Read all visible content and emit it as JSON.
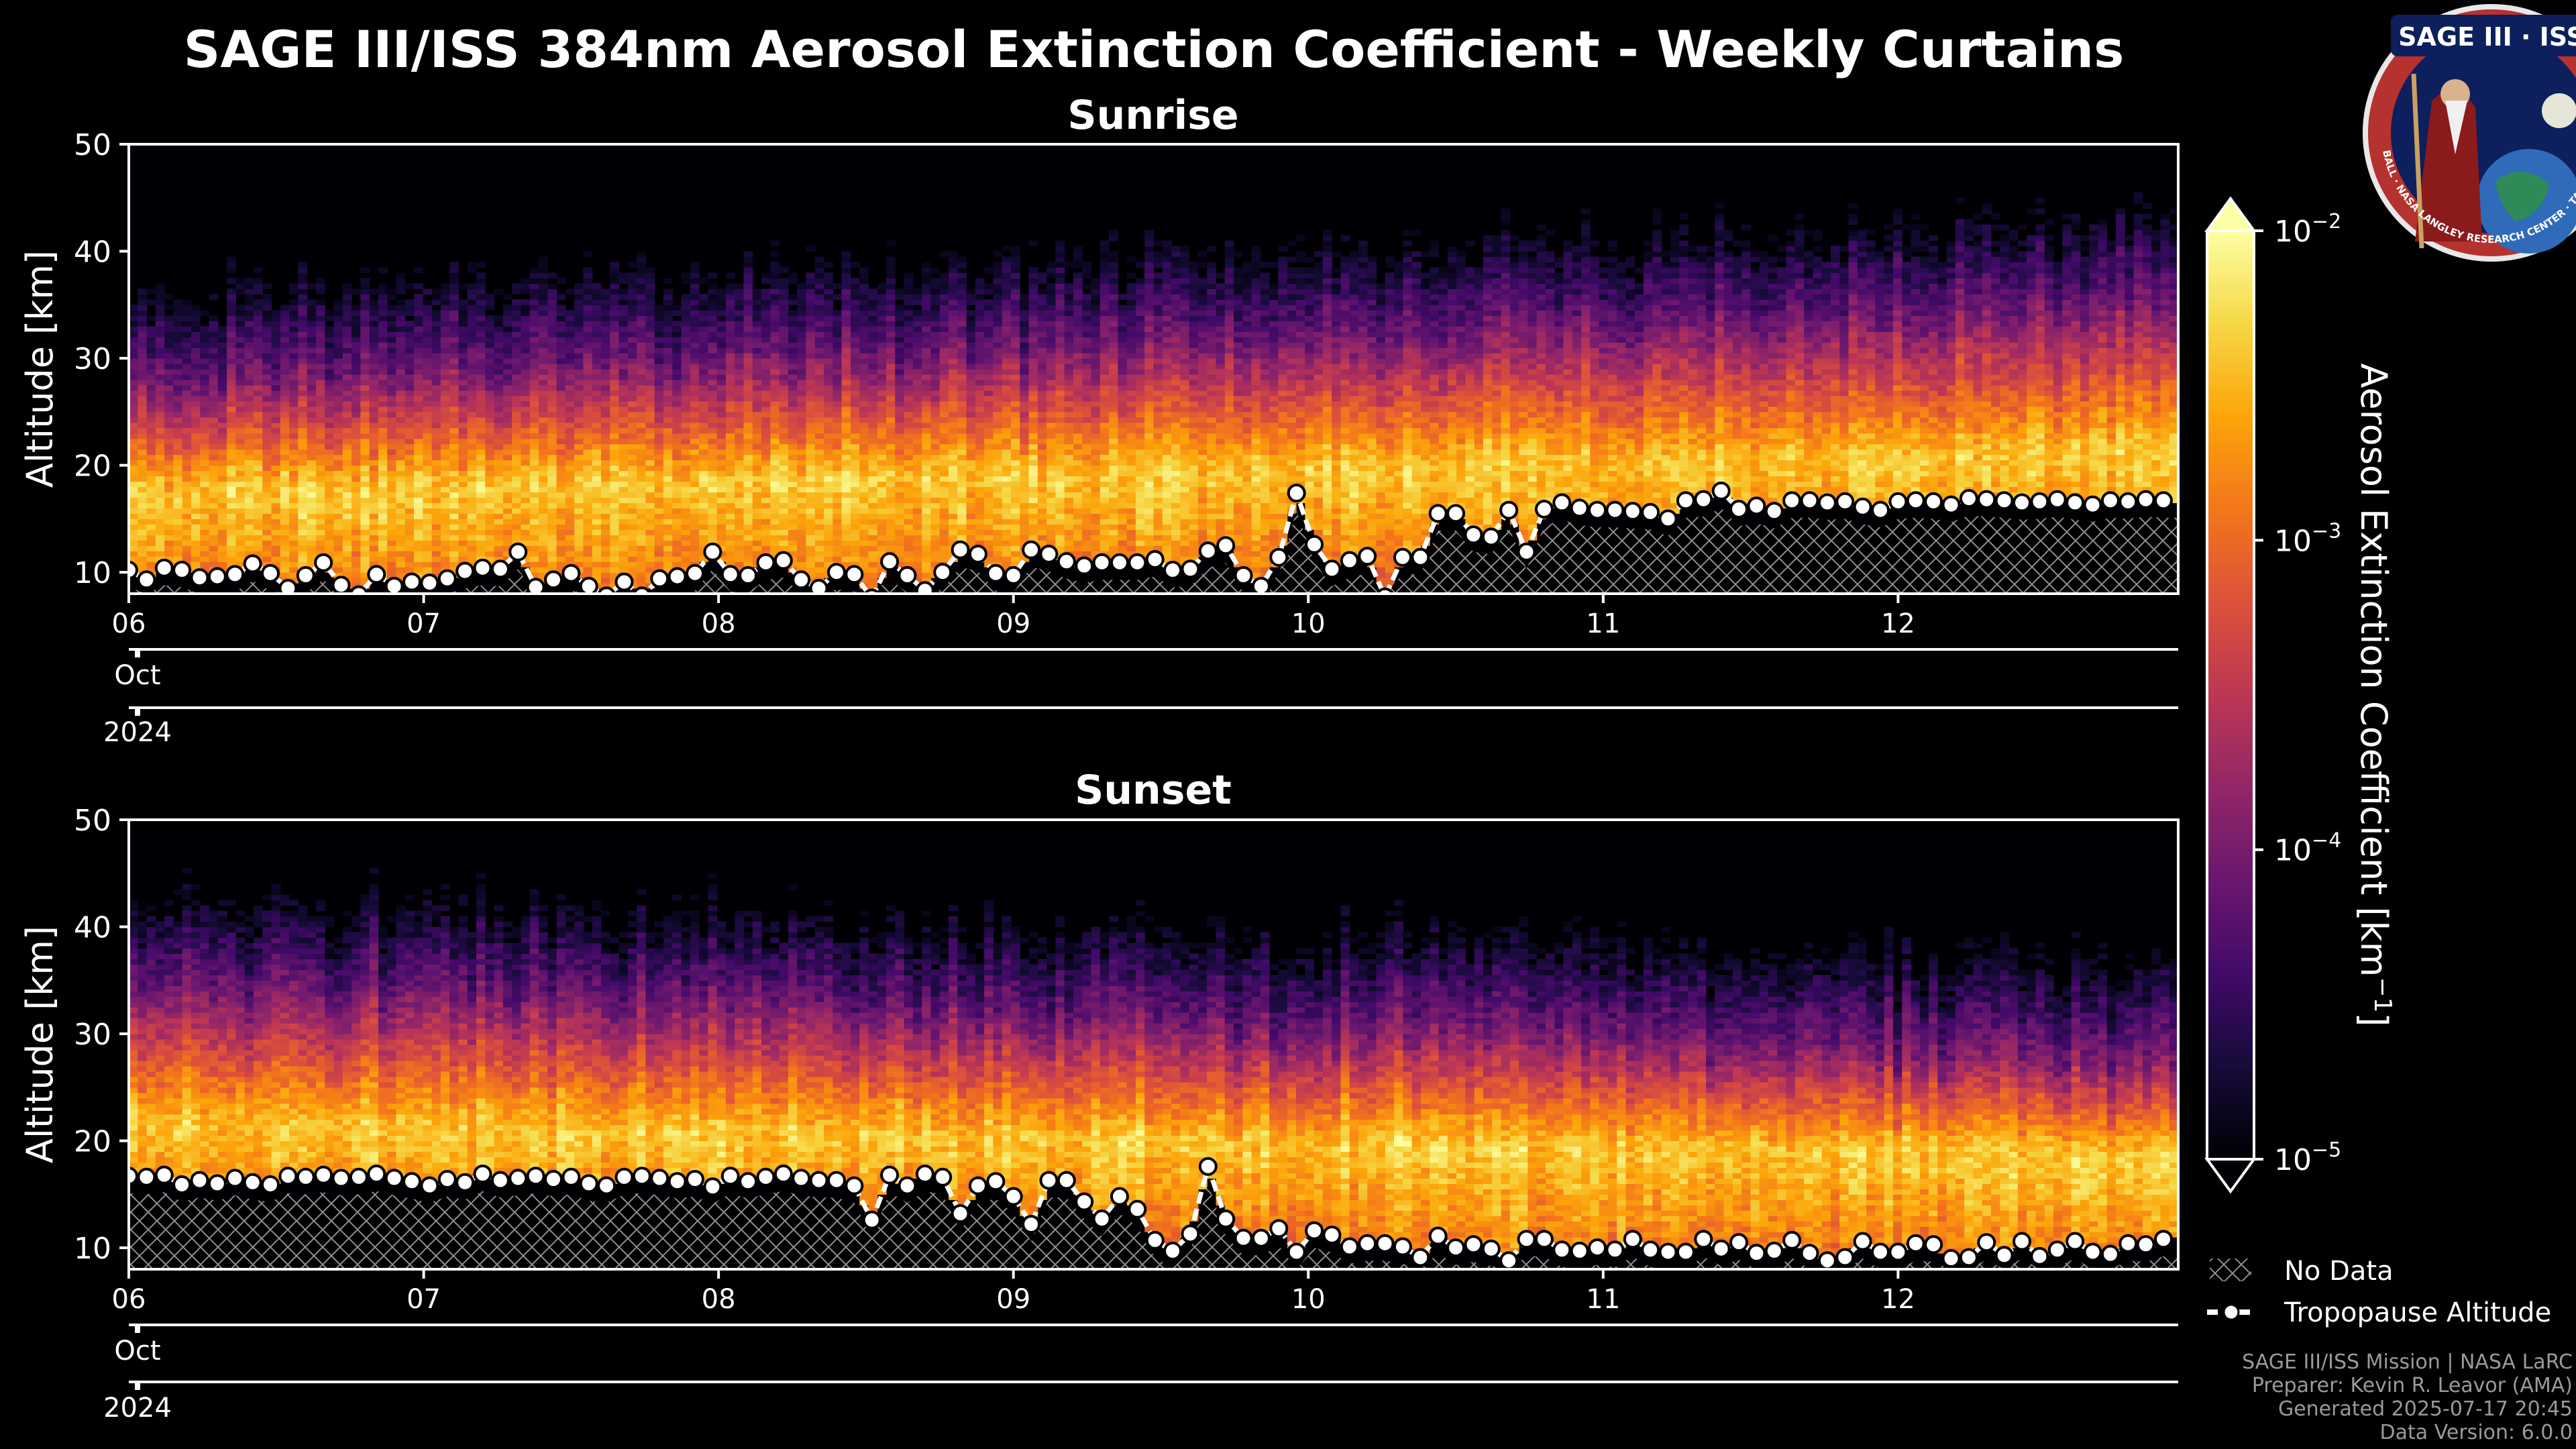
{
  "figure": {
    "title": "SAGE III/ISS 384nm Aerosol Extinction Coefficient - Weekly Curtains",
    "footer": [
      "SAGE III/ISS Mission | NASA LaRC",
      "Preparer: Kevin R. Leavor (AMA)",
      "Generated 2025-07-17 20:45",
      "Data Version: 6.0.0"
    ],
    "logo": {
      "top_text": "SAGE III · ISS",
      "ring_text": "BALL · NASA LANGLEY RESEARCH CENTER · TAS-I · ESA"
    },
    "colors": {
      "background": "#000000",
      "axes": "#ffffff",
      "hatch": "#9a9a9a",
      "tropopause": "#ffffff"
    }
  },
  "legend": {
    "no_data": "No Data",
    "tropopause": "Tropopause Altitude"
  },
  "colorbar": {
    "label": "Aerosol Extinction Coefficient [km",
    "label_exp": "−1",
    "label_close": "]",
    "scale": "log",
    "range": [
      1e-05,
      0.01
    ],
    "ticks": [
      {
        "base": "10",
        "exp": "−2",
        "value": 0.01
      },
      {
        "base": "10",
        "exp": "−3",
        "value": 0.001
      },
      {
        "base": "10",
        "exp": "−4",
        "value": 0.0001
      },
      {
        "base": "10",
        "exp": "−5",
        "value": 1e-05
      }
    ],
    "colormap": "inferno",
    "extend": "both"
  },
  "chart_data": [
    {
      "type": "heatmap",
      "title": "Sunrise",
      "ylabel": "Altitude [km]",
      "ylim": [
        8,
        50
      ],
      "yticks": [
        10,
        20,
        30,
        40,
        50
      ],
      "xlim_days": [
        6.0,
        12.95
      ],
      "xticks": [
        "06",
        "07",
        "08",
        "09",
        "10",
        "11",
        "12"
      ],
      "xtick_days": [
        6,
        7,
        8,
        9,
        10,
        11,
        12
      ],
      "month_label": "Oct",
      "year_label": "2024",
      "aerosol_layer": {
        "peak_alt_km_start": 17.5,
        "peak_alt_km_end": 21.0,
        "top_alt_km_start": 27,
        "top_alt_km_end": 34
      },
      "tropopause": {
        "days": [
          6.0,
          6.06,
          6.12,
          6.18,
          6.24,
          6.3,
          6.36,
          6.42,
          6.48,
          6.54,
          6.6,
          6.66,
          6.72,
          6.78,
          6.84,
          6.9,
          6.96,
          7.02,
          7.08,
          7.14,
          7.2,
          7.26,
          7.32,
          7.38,
          7.44,
          7.5,
          7.56,
          7.62,
          7.68,
          7.74,
          7.8,
          7.86,
          7.92,
          7.98,
          8.04,
          8.1,
          8.16,
          8.22,
          8.28,
          8.34,
          8.4,
          8.46,
          8.52,
          8.58,
          8.64,
          8.7,
          8.76,
          8.82,
          8.88,
          8.94,
          9.0,
          9.06,
          9.12,
          9.18,
          9.24,
          9.3,
          9.36,
          9.42,
          9.48,
          9.54,
          9.6,
          9.66,
          9.72,
          9.78,
          9.84,
          9.9,
          9.96,
          10.02,
          10.08,
          10.14,
          10.2,
          10.26,
          10.32,
          10.38,
          10.44,
          10.5,
          10.56,
          10.62,
          10.68,
          10.74,
          10.8,
          10.86,
          10.92,
          10.98,
          11.04,
          11.1,
          11.16,
          11.22,
          11.28,
          11.34,
          11.4,
          11.46,
          11.52,
          11.58,
          11.64,
          11.7,
          11.76,
          11.82,
          11.88,
          11.94,
          12.0,
          12.06,
          12.12,
          12.18,
          12.24,
          12.3,
          12.36,
          12.42,
          12.48,
          12.54,
          12.6,
          12.66,
          12.72,
          12.78,
          12.84,
          12.9
        ],
        "alt_km": [
          10.2,
          9.3,
          10.4,
          10.2,
          9.5,
          9.6,
          9.8,
          10.8,
          9.9,
          8.5,
          9.7,
          10.9,
          8.8,
          7.9,
          9.8,
          8.7,
          9.1,
          9.0,
          9.4,
          10.1,
          10.4,
          10.3,
          11.9,
          8.6,
          9.3,
          9.9,
          8.7,
          7.8,
          9.1,
          7.8,
          9.4,
          9.6,
          9.9,
          11.9,
          9.8,
          9.7,
          10.9,
          11.1,
          9.3,
          8.5,
          10.0,
          9.8,
          7.6,
          11.0,
          9.7,
          8.3,
          10.0,
          12.1,
          11.7,
          9.9,
          9.7,
          12.1,
          11.7,
          11.0,
          10.6,
          10.9,
          10.9,
          10.9,
          11.2,
          10.2,
          10.3,
          12.0,
          12.5,
          9.7,
          8.7,
          11.4,
          17.4,
          12.6,
          10.3,
          11.1,
          11.5,
          7.7,
          11.4,
          11.4,
          15.5,
          15.5,
          13.5,
          13.3,
          15.8,
          11.9,
          15.9,
          16.5,
          16.0,
          15.8,
          15.8,
          15.7,
          15.6,
          15.0,
          16.7,
          16.8,
          17.6,
          15.9,
          16.2,
          15.7,
          16.7,
          16.7,
          16.5,
          16.6,
          16.1,
          15.8,
          16.6,
          16.7,
          16.6,
          16.3,
          16.9,
          16.8,
          16.7,
          16.5,
          16.6,
          16.8,
          16.5,
          16.3,
          16.7,
          16.6,
          16.8,
          16.7
        ]
      }
    },
    {
      "type": "heatmap",
      "title": "Sunset",
      "ylabel": "Altitude [km]",
      "ylim": [
        8,
        50
      ],
      "yticks": [
        10,
        20,
        30,
        40,
        50
      ],
      "xlim_days": [
        6.0,
        12.95
      ],
      "xticks": [
        "06",
        "07",
        "08",
        "09",
        "10",
        "11",
        "12"
      ],
      "xtick_days": [
        6,
        7,
        8,
        9,
        10,
        11,
        12
      ],
      "month_label": "Oct",
      "year_label": "2024",
      "aerosol_layer": {
        "peak_alt_km_start": 21.5,
        "peak_alt_km_end": 18.5,
        "top_alt_km_start": 34,
        "top_alt_km_end": 27
      },
      "tropopause": {
        "days": [
          6.0,
          6.06,
          6.12,
          6.18,
          6.24,
          6.3,
          6.36,
          6.42,
          6.48,
          6.54,
          6.6,
          6.66,
          6.72,
          6.78,
          6.84,
          6.9,
          6.96,
          7.02,
          7.08,
          7.14,
          7.2,
          7.26,
          7.32,
          7.38,
          7.44,
          7.5,
          7.56,
          7.62,
          7.68,
          7.74,
          7.8,
          7.86,
          7.92,
          7.98,
          8.04,
          8.1,
          8.16,
          8.22,
          8.28,
          8.34,
          8.4,
          8.46,
          8.52,
          8.58,
          8.64,
          8.7,
          8.76,
          8.82,
          8.88,
          8.94,
          9.0,
          9.06,
          9.12,
          9.18,
          9.24,
          9.3,
          9.36,
          9.42,
          9.48,
          9.54,
          9.6,
          9.66,
          9.72,
          9.78,
          9.84,
          9.9,
          9.96,
          10.02,
          10.08,
          10.14,
          10.2,
          10.26,
          10.32,
          10.38,
          10.44,
          10.5,
          10.56,
          10.62,
          10.68,
          10.74,
          10.8,
          10.86,
          10.92,
          10.98,
          11.04,
          11.1,
          11.16,
          11.22,
          11.28,
          11.34,
          11.4,
          11.46,
          11.52,
          11.58,
          11.64,
          11.7,
          11.76,
          11.82,
          11.88,
          11.94,
          12.0,
          12.06,
          12.12,
          12.18,
          12.24,
          12.3,
          12.36,
          12.42,
          12.48,
          12.54,
          12.6,
          12.66,
          12.72,
          12.78,
          12.84,
          12.9
        ],
        "alt_km": [
          16.7,
          16.6,
          16.8,
          15.9,
          16.3,
          16.0,
          16.5,
          16.1,
          15.9,
          16.7,
          16.6,
          16.8,
          16.5,
          16.6,
          16.9,
          16.5,
          16.2,
          15.8,
          16.4,
          16.1,
          16.9,
          16.3,
          16.5,
          16.7,
          16.4,
          16.6,
          16.0,
          15.8,
          16.6,
          16.7,
          16.5,
          16.2,
          16.4,
          15.7,
          16.7,
          16.2,
          16.6,
          16.9,
          16.5,
          16.3,
          16.3,
          15.8,
          12.6,
          16.8,
          15.8,
          16.9,
          16.6,
          13.2,
          15.8,
          16.2,
          14.8,
          12.2,
          16.3,
          16.3,
          14.3,
          12.7,
          14.8,
          13.6,
          10.7,
          9.7,
          11.3,
          17.6,
          12.7,
          10.9,
          10.9,
          11.8,
          9.6,
          11.6,
          11.2,
          10.1,
          10.4,
          10.4,
          10.1,
          9.1,
          11.1,
          10.0,
          10.3,
          9.9,
          8.8,
          10.8,
          10.8,
          9.8,
          9.7,
          10.0,
          9.8,
          10.8,
          9.8,
          9.6,
          9.6,
          10.8,
          9.9,
          10.5,
          9.5,
          9.7,
          10.7,
          9.5,
          8.8,
          9.1,
          10.6,
          9.6,
          9.6,
          10.4,
          10.3,
          9.0,
          9.1,
          10.5,
          9.3,
          10.6,
          9.2,
          9.8,
          10.6,
          9.6,
          9.4,
          10.4,
          10.3,
          10.8
        ]
      }
    }
  ]
}
